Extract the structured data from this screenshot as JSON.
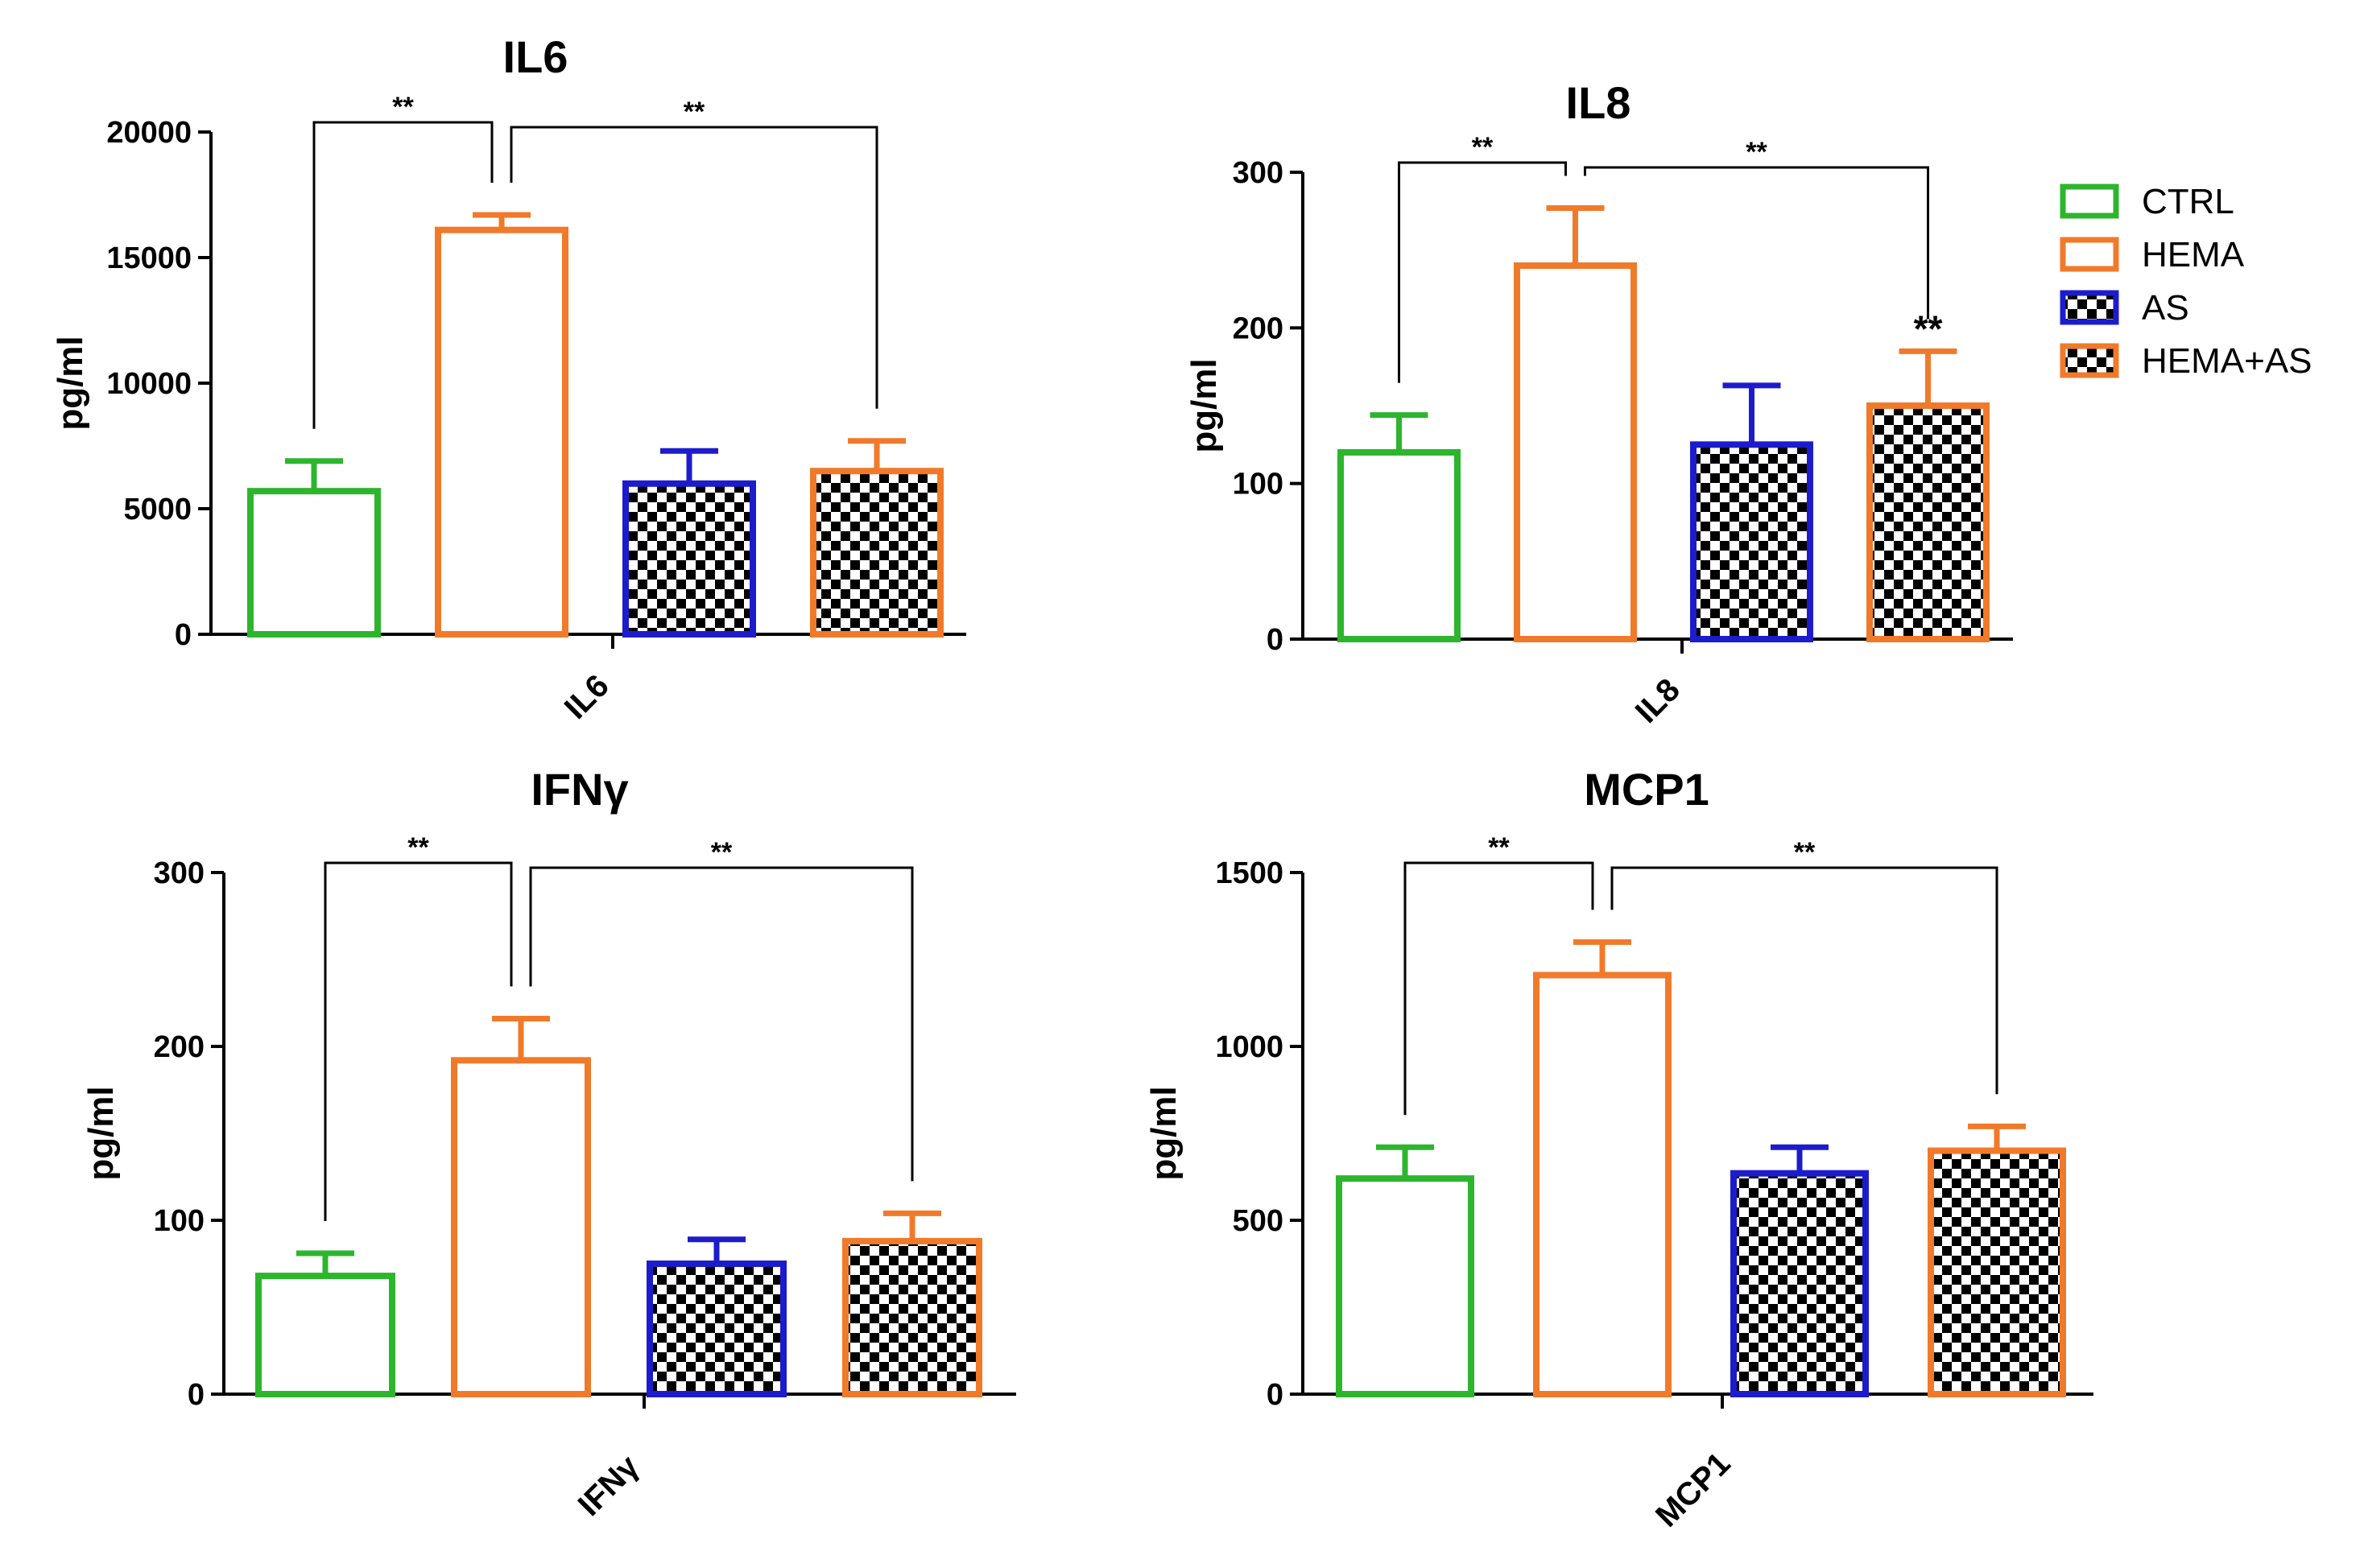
{
  "legend": [
    {
      "name": "CTRL",
      "color": "#2db52d",
      "pattern": false
    },
    {
      "name": "HEMA",
      "color": "#f07a2a",
      "pattern": false
    },
    {
      "name": "AS",
      "color": "#1c1ccc",
      "pattern": true
    },
    {
      "name": "HEMA+AS",
      "color": "#f07a2a",
      "pattern": true
    }
  ],
  "chart_data": [
    {
      "type": "bar",
      "title": "IL6",
      "ylabel": "pg/ml",
      "xlabel": "IL6",
      "ylim": [
        0,
        20000
      ],
      "yticks": [
        "0",
        "5000",
        "10000",
        "15000",
        "20000"
      ],
      "categories": [
        "CTRL",
        "HEMA",
        "AS",
        "HEMA+AS"
      ],
      "values": [
        5700,
        16100,
        6000,
        6500
      ],
      "errors": [
        1200,
        600,
        1300,
        1200
      ],
      "significance": [
        {
          "from": 0,
          "to": 1,
          "label": "**"
        },
        {
          "from": 1,
          "to": 3,
          "label": "**"
        }
      ],
      "bar_annotations": []
    },
    {
      "type": "bar",
      "title": "IL8",
      "ylabel": "pg/ml",
      "xlabel": "IL8",
      "ylim": [
        0,
        300
      ],
      "yticks": [
        "0",
        "100",
        "200",
        "300"
      ],
      "categories": [
        "CTRL",
        "HEMA",
        "AS",
        "HEMA+AS"
      ],
      "values": [
        120,
        240,
        125,
        150
      ],
      "errors": [
        24,
        37,
        38,
        35
      ],
      "significance": [
        {
          "from": 0,
          "to": 1,
          "label": "**"
        },
        {
          "from": 1,
          "to": 3,
          "label": "**"
        }
      ],
      "bar_annotations": [
        {
          "index": 3,
          "label": "**"
        }
      ]
    },
    {
      "type": "bar",
      "title": "IFNγ",
      "ylabel": "pg/ml",
      "xlabel": "IFNγ",
      "ylim": [
        0,
        300
      ],
      "yticks": [
        "0",
        "100",
        "200",
        "300"
      ],
      "categories": [
        "CTRL",
        "HEMA",
        "AS",
        "HEMA+AS"
      ],
      "values": [
        68,
        192,
        75,
        88
      ],
      "errors": [
        13,
        24,
        14,
        16
      ],
      "significance": [
        {
          "from": 0,
          "to": 1,
          "label": "**"
        },
        {
          "from": 1,
          "to": 3,
          "label": "**"
        }
      ],
      "bar_annotations": []
    },
    {
      "type": "bar",
      "title": "MCP1",
      "ylabel": "pg/ml",
      "xlabel": "MCP1",
      "ylim": [
        0,
        1500
      ],
      "yticks": [
        "0",
        "500",
        "1000",
        "1500"
      ],
      "categories": [
        "CTRL",
        "HEMA",
        "AS",
        "HEMA+AS"
      ],
      "values": [
        620,
        1205,
        635,
        700
      ],
      "errors": [
        90,
        95,
        75,
        70
      ],
      "significance": [
        {
          "from": 0,
          "to": 1,
          "label": "**"
        },
        {
          "from": 1,
          "to": 3,
          "label": "**"
        }
      ],
      "bar_annotations": []
    }
  ]
}
